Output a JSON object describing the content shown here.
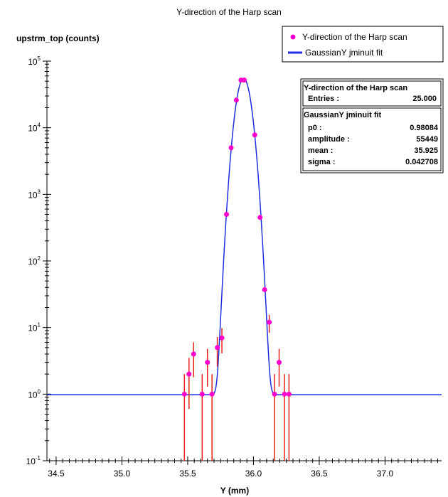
{
  "chart_data": {
    "type": "scatter",
    "title": "Y-direction of the Harp scan",
    "ylabel": "upstrm_top (counts)",
    "xlabel": "Y (mm)",
    "xlim": [
      34.43,
      37.43
    ],
    "ylim": [
      0.1,
      100000
    ],
    "yscale": "log",
    "xticks": [
      34.5,
      35.0,
      35.5,
      36.0,
      36.5,
      37.0
    ],
    "xtick_labels": [
      "34.5",
      "35.0",
      "35.5",
      "36.0",
      "36.5",
      "37.0"
    ],
    "yticks": [
      {
        "base": "10",
        "exp": "-1",
        "value": 0.1
      },
      {
        "base": "10",
        "exp": "0",
        "value": 1
      },
      {
        "base": "10",
        "exp": "1",
        "value": 10
      },
      {
        "base": "10",
        "exp": "2",
        "value": 100
      },
      {
        "base": "10",
        "exp": "3",
        "value": 1000
      },
      {
        "base": "10",
        "exp": "4",
        "value": 10000
      },
      {
        "base": "10",
        "exp": "5",
        "value": 100000
      }
    ],
    "series": [
      {
        "name": "Y-direction of the Harp scan",
        "color": "#ff00cc",
        "errorbar_color": "#e8201a",
        "points": [
          {
            "x": 35.475,
            "y": 1,
            "lo": 0.1,
            "hi": 2.0
          },
          {
            "x": 35.51,
            "y": 2,
            "lo": 0.6,
            "hi": 3.5
          },
          {
            "x": 35.545,
            "y": 4,
            "lo": 1.8,
            "hi": 6.0
          },
          {
            "x": 35.61,
            "y": 1,
            "lo": 0.1,
            "hi": 2.0
          },
          {
            "x": 35.65,
            "y": 3,
            "lo": 1.3,
            "hi": 4.8
          },
          {
            "x": 35.685,
            "y": 1,
            "lo": 0.1,
            "hi": 2.0
          },
          {
            "x": 35.725,
            "y": 5,
            "lo": 2.6,
            "hi": 7.2
          },
          {
            "x": 35.76,
            "y": 7,
            "lo": 4.1,
            "hi": 9.8
          },
          {
            "x": 35.795,
            "y": 500
          },
          {
            "x": 35.83,
            "y": 5000
          },
          {
            "x": 35.87,
            "y": 26000
          },
          {
            "x": 35.905,
            "y": 52000
          },
          {
            "x": 35.93,
            "y": 52000
          },
          {
            "x": 36.01,
            "y": 7800
          },
          {
            "x": 36.05,
            "y": 450
          },
          {
            "x": 36.085,
            "y": 37
          },
          {
            "x": 36.12,
            "y": 12,
            "lo": 8.3,
            "hi": 15.5
          },
          {
            "x": 36.16,
            "y": 1,
            "lo": 0.1,
            "hi": 2.0
          },
          {
            "x": 36.195,
            "y": 3,
            "lo": 1.3,
            "hi": 4.8
          },
          {
            "x": 36.235,
            "y": 1,
            "lo": 0.1,
            "hi": 2.0
          },
          {
            "x": 36.27,
            "y": 1,
            "lo": 0.1,
            "hi": 2.0
          }
        ]
      },
      {
        "name": "GaussianY jminuit fit",
        "color": "#1f2de0",
        "function": "gaussian",
        "params": {
          "p0": 0.98084,
          "amplitude": 55449,
          "mean": 35.925,
          "sigma": 0.042708
        }
      }
    ],
    "legend_position": "top-right"
  },
  "stats_box": {
    "header": "Y-direction of the Harp scan",
    "entries_label": "Entries :",
    "entries_value": "25.000",
    "fit_header": "GaussianY jminuit fit",
    "rows": [
      {
        "label": "p0 :",
        "value": "0.98084"
      },
      {
        "label": "amplitude :",
        "value": "55449"
      },
      {
        "label": "mean :",
        "value": "35.925"
      },
      {
        "label": "sigma :",
        "value": "0.042708"
      }
    ]
  }
}
